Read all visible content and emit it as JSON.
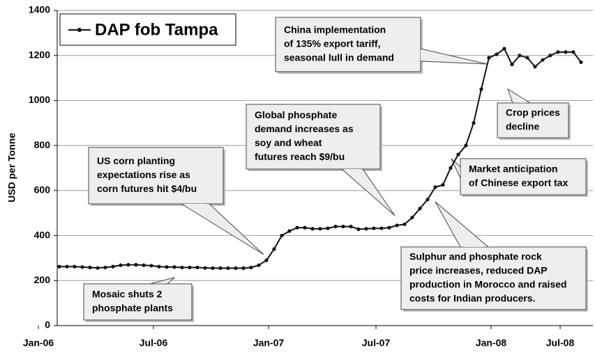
{
  "chart_data": {
    "type": "line",
    "ylabel": "USD per Tonne",
    "categories": [
      "Jan-06",
      null,
      null,
      null,
      null,
      null,
      null,
      null,
      null,
      null,
      null,
      null,
      null,
      null,
      null,
      "Jul-06",
      null,
      null,
      null,
      null,
      null,
      null,
      null,
      null,
      null,
      null,
      null,
      null,
      null,
      null,
      "Jan-07",
      null,
      null,
      null,
      null,
      null,
      null,
      null,
      null,
      null,
      null,
      null,
      null,
      null,
      "Jul-07",
      null,
      null,
      null,
      null,
      null,
      null,
      null,
      null,
      null,
      null,
      null,
      null,
      null,
      null,
      "Jan-08",
      null,
      null,
      null,
      null,
      null,
      null,
      null,
      null,
      "Jul-08"
    ],
    "series": [
      {
        "name": "DAP fob Tampa",
        "color": "#111111",
        "values": [
          262,
          262,
          262,
          260,
          258,
          256,
          258,
          262,
          268,
          270,
          270,
          268,
          266,
          262,
          260,
          260,
          258,
          258,
          258,
          256,
          255,
          255,
          255,
          255,
          255,
          258,
          268,
          290,
          340,
          400,
          420,
          435,
          435,
          430,
          430,
          432,
          440,
          440,
          440,
          428,
          430,
          432,
          432,
          435,
          445,
          450,
          480,
          520,
          560,
          615,
          625,
          700,
          760,
          800,
          900,
          1050,
          1190,
          1205,
          1230,
          1160,
          1200,
          1190,
          1150,
          1180,
          1200,
          1215,
          1215,
          1215,
          1170
        ]
      }
    ],
    "ylim": [
      0,
      1400
    ],
    "yticks": [
      0,
      200,
      400,
      600,
      800,
      1000,
      1200,
      1400
    ],
    "grid": true,
    "legend": "top-left",
    "annotations": [
      {
        "text": [
          "China implementation",
          "of 135% export tariff,",
          "seasonal lull in demand"
        ]
      },
      {
        "text": [
          "Crop prices",
          "decline"
        ]
      },
      {
        "text": [
          "Global phosphate",
          "demand increases as",
          "soy and wheat",
          "futures reach $9/bu"
        ]
      },
      {
        "text": [
          "Market anticipation",
          "of Chinese export tax"
        ]
      },
      {
        "text": [
          "US corn planting",
          "expectations rise as",
          "corn futures hit $4/bu"
        ]
      },
      {
        "text": [
          "Sulphur and phosphate rock",
          "price increases, reduced DAP",
          "production in Morocco and raised",
          "costs for Indian producers."
        ]
      },
      {
        "text": [
          "Mosaic shuts 2",
          "phosphate plants"
        ]
      }
    ]
  }
}
